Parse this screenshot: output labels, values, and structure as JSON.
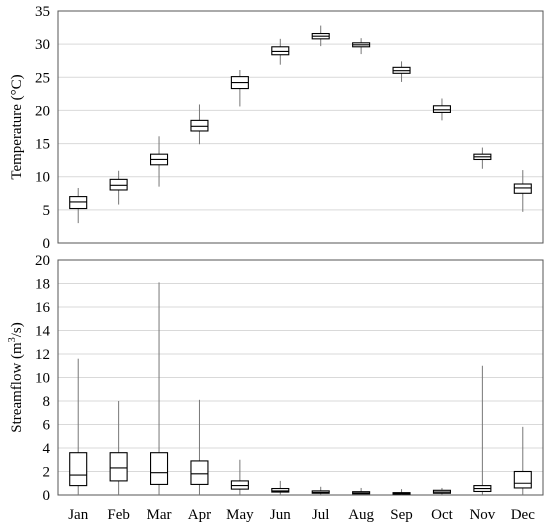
{
  "chart_data": [
    {
      "type": "box",
      "title": "",
      "xlabel": "",
      "ylabel": "Temperature (°C)",
      "ylim": [
        0,
        35
      ],
      "yticks": [
        0,
        5,
        10,
        15,
        20,
        25,
        30,
        35
      ],
      "grid": "horizontal",
      "categories": [
        "Jan",
        "Feb",
        "Mar",
        "Apr",
        "May",
        "Jun",
        "Jul",
        "Aug",
        "Sep",
        "Oct",
        "Nov",
        "Dec"
      ],
      "boxes": [
        {
          "min": 3.0,
          "q1": 5.2,
          "median": 6.2,
          "q3": 7.0,
          "max": 8.3
        },
        {
          "min": 5.8,
          "q1": 8.0,
          "median": 8.7,
          "q3": 9.6,
          "max": 10.9
        },
        {
          "min": 8.5,
          "q1": 11.8,
          "median": 12.6,
          "q3": 13.4,
          "max": 16.1
        },
        {
          "min": 14.9,
          "q1": 16.9,
          "median": 17.6,
          "q3": 18.5,
          "max": 20.9
        },
        {
          "min": 20.6,
          "q1": 23.3,
          "median": 24.2,
          "q3": 25.1,
          "max": 26.1
        },
        {
          "min": 26.9,
          "q1": 28.4,
          "median": 28.9,
          "q3": 29.6,
          "max": 30.8
        },
        {
          "min": 29.7,
          "q1": 30.8,
          "median": 31.2,
          "q3": 31.6,
          "max": 32.8
        },
        {
          "min": 28.5,
          "q1": 29.6,
          "median": 29.9,
          "q3": 30.2,
          "max": 30.9
        },
        {
          "min": 24.3,
          "q1": 25.6,
          "median": 26.0,
          "q3": 26.5,
          "max": 27.4
        },
        {
          "min": 18.5,
          "q1": 19.7,
          "median": 20.1,
          "q3": 20.7,
          "max": 21.8
        },
        {
          "min": 11.2,
          "q1": 12.6,
          "median": 13.0,
          "q3": 13.4,
          "max": 14.4
        },
        {
          "min": 4.7,
          "q1": 7.5,
          "median": 8.3,
          "q3": 8.9,
          "max": 11.0
        }
      ]
    },
    {
      "type": "box",
      "title": "",
      "xlabel": "",
      "ylabel": "Streamflow (m³/s)",
      "ylim": [
        0,
        20
      ],
      "yticks": [
        0,
        2,
        4,
        6,
        8,
        10,
        12,
        14,
        16,
        18,
        20
      ],
      "grid": "horizontal",
      "categories": [
        "Jan",
        "Feb",
        "Mar",
        "Apr",
        "May",
        "Jun",
        "Jul",
        "Aug",
        "Sep",
        "Oct",
        "Nov",
        "Dec"
      ],
      "boxes": [
        {
          "min": 0.0,
          "q1": 0.8,
          "median": 1.7,
          "q3": 3.6,
          "max": 11.6
        },
        {
          "min": 0.0,
          "q1": 1.2,
          "median": 2.3,
          "q3": 3.6,
          "max": 8.0
        },
        {
          "min": 0.0,
          "q1": 0.9,
          "median": 1.9,
          "q3": 3.6,
          "max": 18.1
        },
        {
          "min": 0.0,
          "q1": 0.9,
          "median": 1.8,
          "q3": 2.9,
          "max": 8.1
        },
        {
          "min": 0.0,
          "q1": 0.5,
          "median": 0.8,
          "q3": 1.2,
          "max": 3.0
        },
        {
          "min": 0.0,
          "q1": 0.25,
          "median": 0.35,
          "q3": 0.55,
          "max": 1.2
        },
        {
          "min": 0.0,
          "q1": 0.15,
          "median": 0.22,
          "q3": 0.35,
          "max": 0.7
        },
        {
          "min": 0.0,
          "q1": 0.1,
          "median": 0.17,
          "q3": 0.28,
          "max": 0.6
        },
        {
          "min": 0.0,
          "q1": 0.07,
          "median": 0.12,
          "q3": 0.2,
          "max": 0.5
        },
        {
          "min": 0.0,
          "q1": 0.15,
          "median": 0.25,
          "q3": 0.4,
          "max": 0.6
        },
        {
          "min": 0.0,
          "q1": 0.3,
          "median": 0.55,
          "q3": 0.8,
          "max": 11.0
        },
        {
          "min": 0.0,
          "q1": 0.6,
          "median": 1.0,
          "q3": 2.0,
          "max": 5.8
        }
      ]
    }
  ]
}
